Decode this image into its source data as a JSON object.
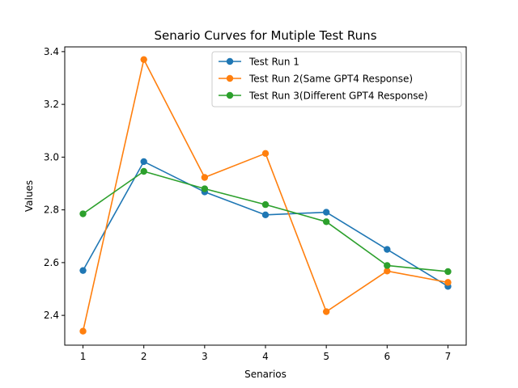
{
  "chart_data": {
    "type": "line",
    "title": "Senario Curves for Mutiple Test Runs",
    "xlabel": "Senarios",
    "ylabel": "Values",
    "x": [
      1,
      2,
      3,
      4,
      5,
      6,
      7
    ],
    "xlim": [
      0.7,
      7.3
    ],
    "ylim": [
      2.287,
      3.418
    ],
    "yticks": [
      2.4,
      2.6,
      2.8,
      3.0,
      3.2,
      3.4
    ],
    "ytick_labels": [
      "2.4",
      "2.6",
      "2.8",
      "3.0",
      "3.2",
      "3.4"
    ],
    "xtick_labels": [
      "1",
      "2",
      "3",
      "4",
      "5",
      "6",
      "7"
    ],
    "legend_position": "top-right",
    "grid": false,
    "series": [
      {
        "name": "Test Run 1",
        "color": "#1f77b4",
        "values": [
          2.57,
          2.983,
          2.868,
          2.781,
          2.791,
          2.65,
          2.51
        ]
      },
      {
        "name": "Test Run 2(Same GPT4 Response)",
        "color": "#ff7f0e",
        "values": [
          2.34,
          3.37,
          2.923,
          3.014,
          2.414,
          2.568,
          2.525
        ]
      },
      {
        "name": "Test Run 3(Different GPT4 Response)",
        "color": "#2ca02c",
        "values": [
          2.785,
          2.946,
          2.88,
          2.82,
          2.755,
          2.589,
          2.566
        ]
      }
    ]
  }
}
